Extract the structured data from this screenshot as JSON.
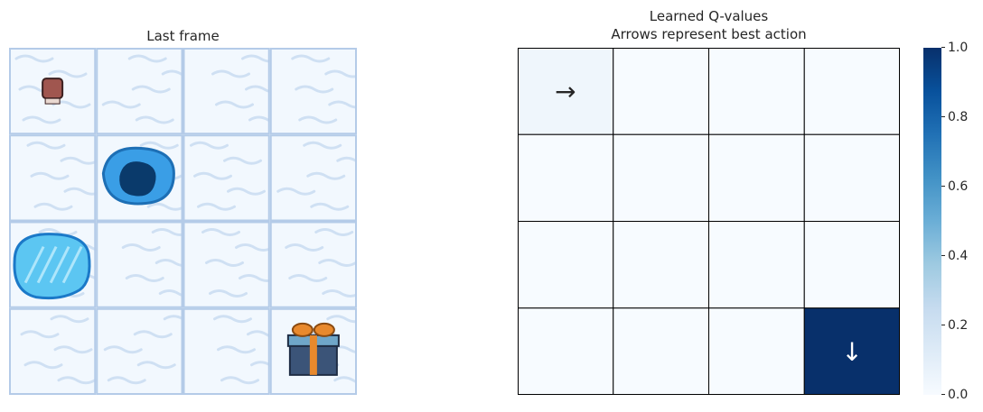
{
  "left_panel": {
    "title": "Last frame"
  },
  "right_panel": {
    "title_line1": "Learned Q-values",
    "title_line2": "Arrows represent best action"
  },
  "colors": {
    "ice": "#f2f8fe",
    "ice_streak": "#cfe0f3",
    "grid_line": "#b4cbe8",
    "hole_outer": "#3a9ee6",
    "hole_inner": "#0a3a6b",
    "cmap_low": "#f7fbff",
    "cmap_mid": "#6baed6",
    "cmap_high": "#08306b",
    "gift_orange": "#e8892d",
    "gift_blue": "#3b5478",
    "agent": "#a0564f"
  },
  "frame": {
    "grid_size": 4,
    "tiles": [
      [
        "agent",
        "frozen",
        "frozen",
        "frozen"
      ],
      [
        "frozen",
        "hole",
        "frozen",
        "frozen"
      ],
      [
        "puddle",
        "frozen",
        "frozen",
        "frozen"
      ],
      [
        "frozen",
        "frozen",
        "frozen",
        "goal"
      ]
    ]
  },
  "chart_data": {
    "type": "heatmap",
    "title": "Learned Q-values\nArrows represent best action",
    "rows": 4,
    "cols": 4,
    "values": [
      [
        0.04,
        0.0,
        0.0,
        0.0
      ],
      [
        0.0,
        0.0,
        0.0,
        0.0
      ],
      [
        0.0,
        0.0,
        0.0,
        0.0
      ],
      [
        0.0,
        0.0,
        0.0,
        1.0
      ]
    ],
    "arrows": [
      [
        "→",
        "",
        "",
        ""
      ],
      [
        "",
        "",
        "",
        ""
      ],
      [
        "",
        "",
        "",
        ""
      ],
      [
        "",
        "",
        "",
        "↓"
      ]
    ],
    "colorbar": {
      "min": 0.0,
      "max": 1.0,
      "ticks": [
        "0.0",
        "0.2",
        "0.4",
        "0.6",
        "0.8",
        "1.0"
      ],
      "cmap": "Blues"
    }
  }
}
